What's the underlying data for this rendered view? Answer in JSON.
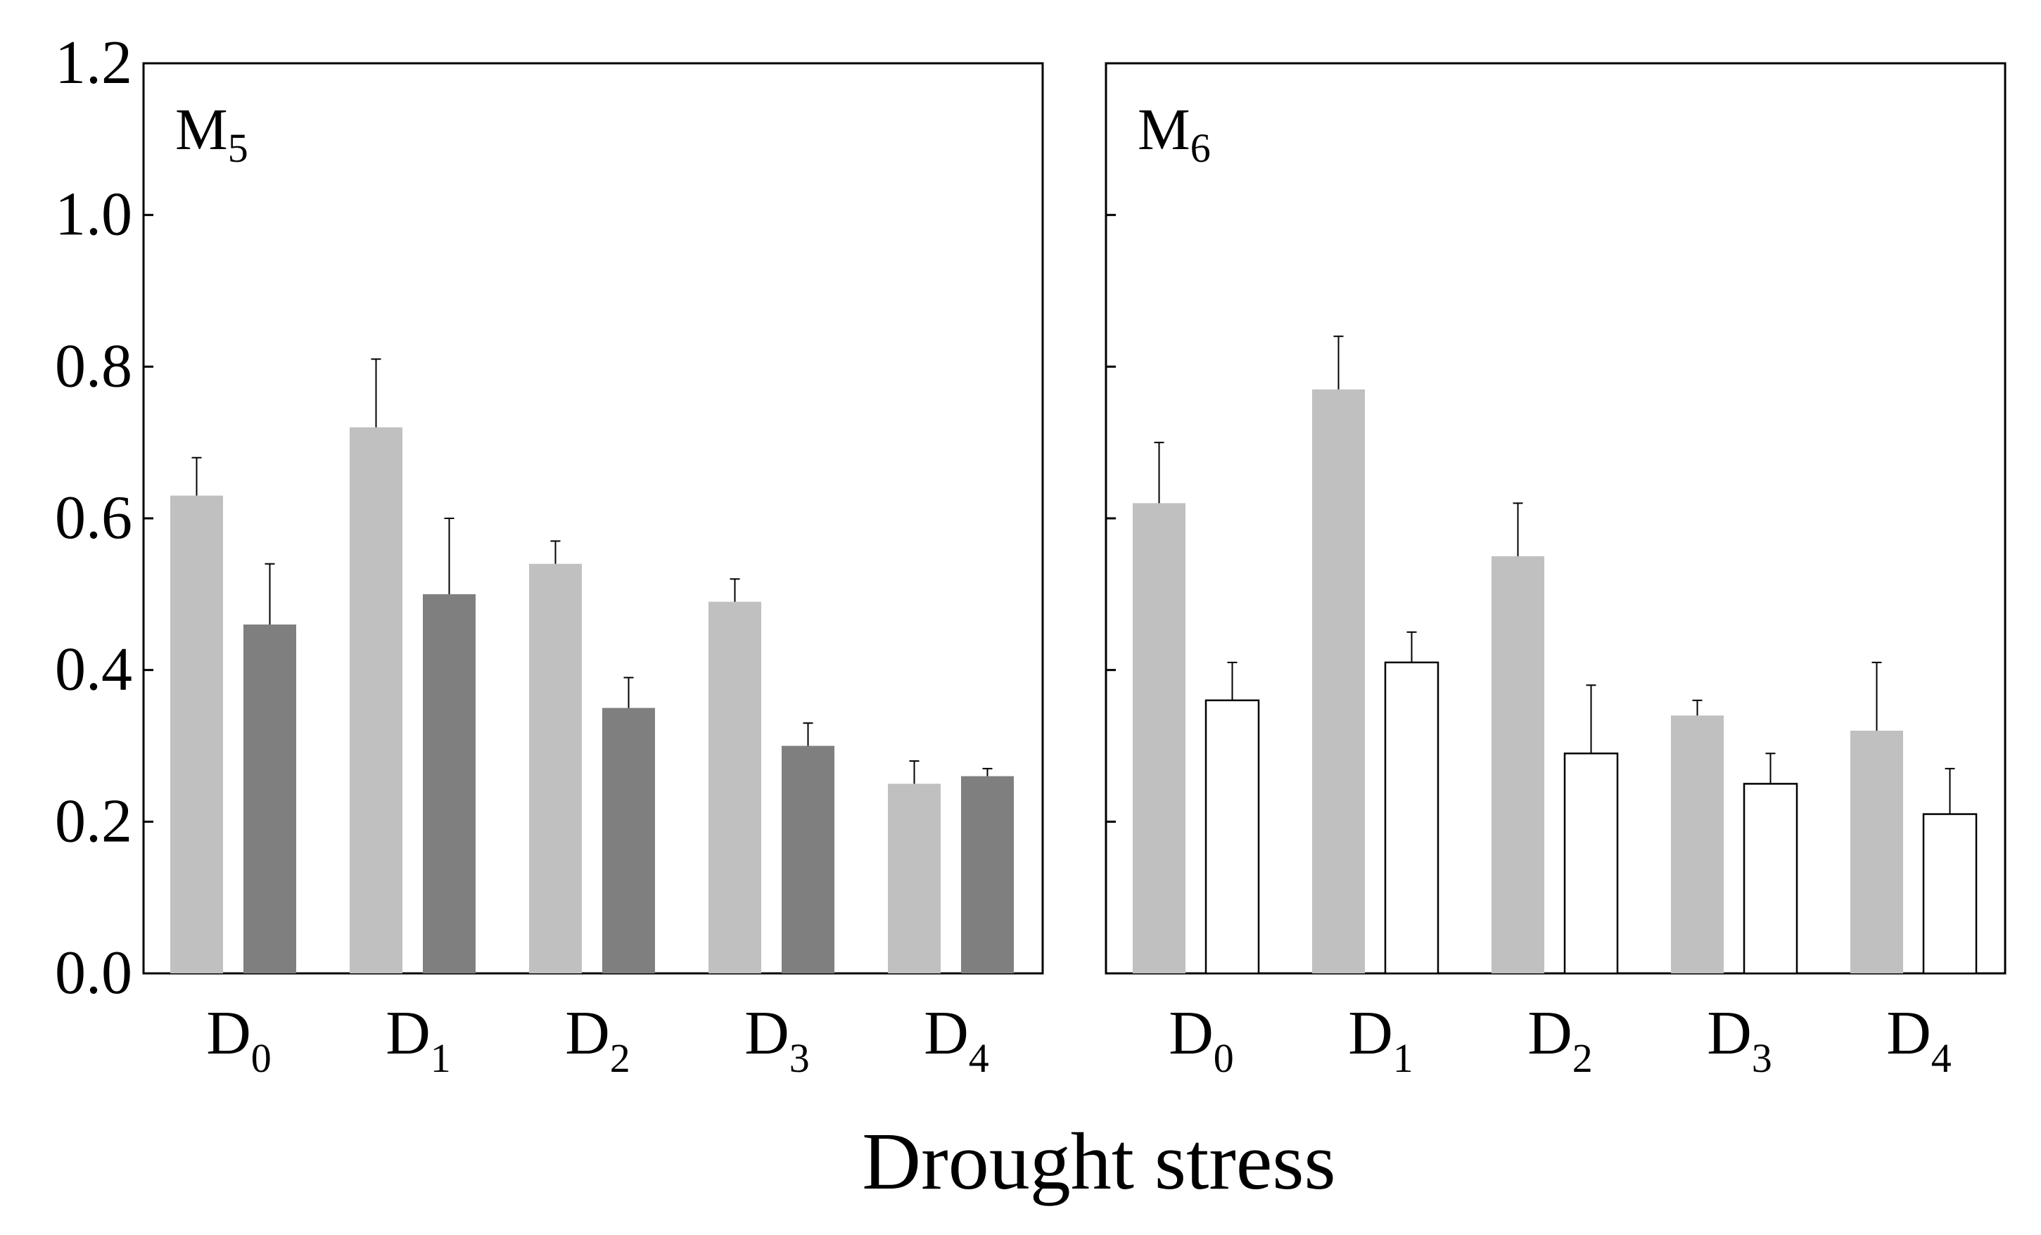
{
  "chart_data": {
    "type": "bar",
    "xlabel": "Drought stress",
    "ylabel": "",
    "ylim": [
      0,
      1.2
    ],
    "yticks": [
      "0.0",
      "0.2",
      "0.4",
      "0.6",
      "0.8",
      "1.0",
      "1.2"
    ],
    "categories": [
      {
        "base": "D",
        "sub": "0"
      },
      {
        "base": "D",
        "sub": "1"
      },
      {
        "base": "D",
        "sub": "2"
      },
      {
        "base": "D",
        "sub": "3"
      },
      {
        "base": "D",
        "sub": "4"
      }
    ],
    "panels": [
      {
        "label": {
          "base": "M",
          "sub": "5"
        },
        "series": [
          {
            "name": "light gray",
            "color": "#c0c0c0",
            "stroke": "none",
            "values": [
              0.63,
              0.72,
              0.54,
              0.49,
              0.25
            ],
            "errors": [
              0.05,
              0.09,
              0.03,
              0.03,
              0.03
            ]
          },
          {
            "name": "dark gray",
            "color": "#7f7f7f",
            "stroke": "none",
            "values": [
              0.46,
              0.5,
              0.35,
              0.3,
              0.26
            ],
            "errors": [
              0.08,
              0.1,
              0.04,
              0.03,
              0.01
            ]
          }
        ]
      },
      {
        "label": {
          "base": "M",
          "sub": "6"
        },
        "series": [
          {
            "name": "light gray",
            "color": "#c0c0c0",
            "stroke": "none",
            "values": [
              0.62,
              0.77,
              0.55,
              0.34,
              0.32
            ],
            "errors": [
              0.08,
              0.07,
              0.07,
              0.02,
              0.09
            ]
          },
          {
            "name": "white",
            "color": "#ffffff",
            "stroke": "#000000",
            "values": [
              0.36,
              0.41,
              0.29,
              0.25,
              0.21
            ],
            "errors": [
              0.05,
              0.04,
              0.09,
              0.04,
              0.06
            ]
          }
        ]
      }
    ]
  }
}
